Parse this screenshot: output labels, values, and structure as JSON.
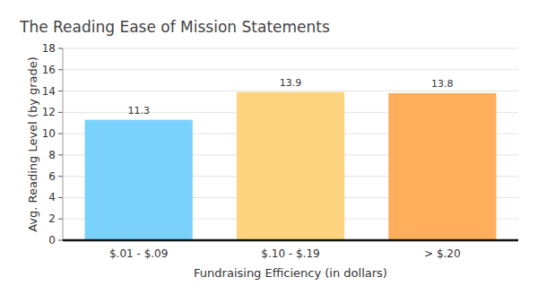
{
  "chart_data": {
    "type": "bar",
    "title": "The Reading Ease of Mission Statements",
    "x_label": "Fundraising Efficiency (in dollars)",
    "y_label": "Avg. Reading Level (by grade)",
    "categories": [
      "$.01 - $.09",
      "$.10 - $.19",
      "> $.20"
    ],
    "values": [
      11.3,
      13.9,
      13.8
    ],
    "colors": [
      "#7ad1fc",
      "#ffd47f",
      "#ffae5c"
    ],
    "ylim": [
      0,
      18
    ],
    "yticks": [
      0,
      2,
      4,
      6,
      8,
      10,
      12,
      14,
      16,
      18
    ],
    "grid": true,
    "data_labels": true
  }
}
